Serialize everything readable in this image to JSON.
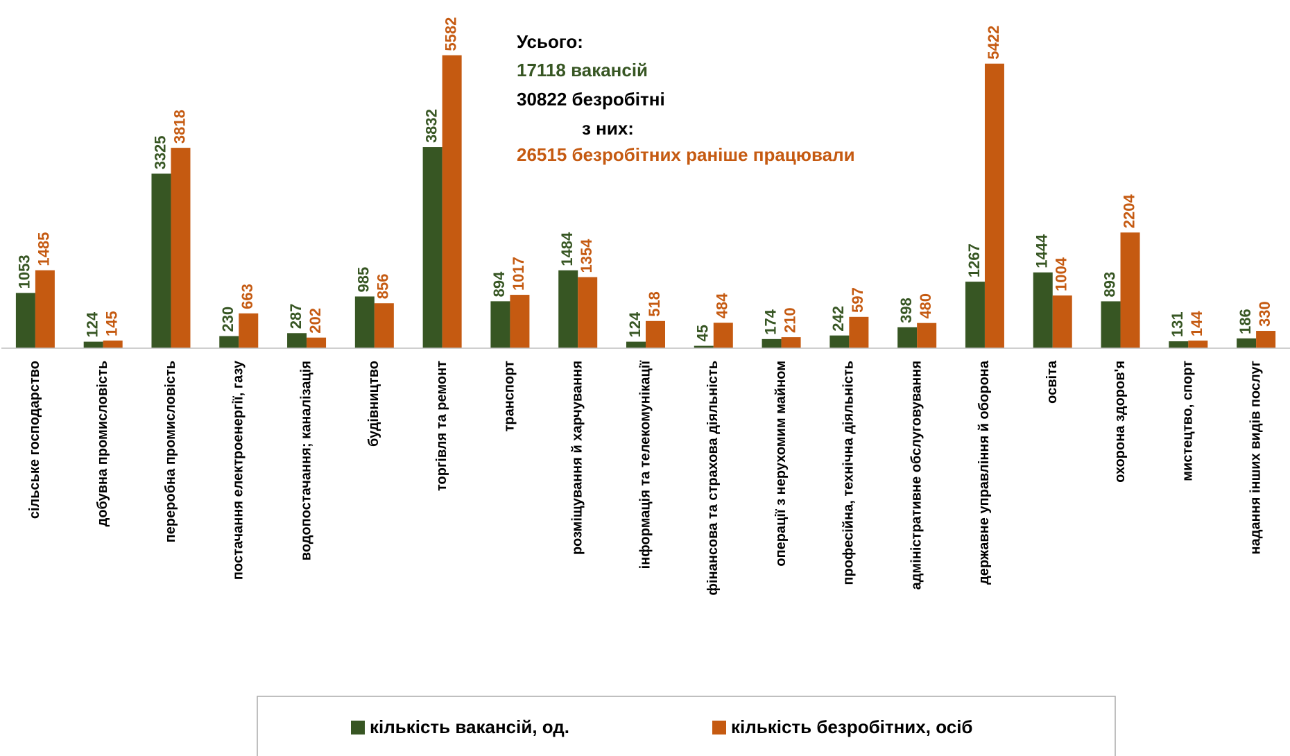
{
  "chart_data": {
    "type": "bar",
    "categories": [
      "сільське господарство",
      "добувна промисловість",
      "переробна промисловість",
      "постачання електроенергії, газу",
      "водопостачання; каналізація",
      "будівництво",
      "торгівля та ремонт",
      "транспорт",
      "розміщування й харчування",
      "інформація та телекомунікації",
      "фінансова та страхова діяльність",
      "операції з нерухомим майном",
      "професійна, технічна діяльність",
      "адміністративне обслуговування",
      "державне управління й оборона",
      "освіта",
      "охорона здоров'я",
      "мистецтво, спорт",
      "надання інших видів послуг"
    ],
    "series": [
      {
        "name": "кількість вакансій, од.",
        "color": "#375623",
        "values": [
          1053,
          124,
          3325,
          230,
          287,
          985,
          3832,
          894,
          1484,
          124,
          45,
          174,
          242,
          398,
          1267,
          1444,
          893,
          131,
          186
        ]
      },
      {
        "name": "кількість безробітних, осіб",
        "color": "#c55a11",
        "values": [
          1485,
          145,
          3818,
          663,
          202,
          856,
          5582,
          1017,
          1354,
          518,
          484,
          210,
          597,
          480,
          5422,
          1004,
          2204,
          144,
          330
        ]
      }
    ],
    "ylim": [
      0,
      6000
    ],
    "annotations": [
      {
        "text": "Усього:",
        "color": "#000000"
      },
      {
        "text": "17118  вакансій",
        "color": "#375623"
      },
      {
        "text": "30822 безробітні",
        "color": "#000000"
      },
      {
        "text": "з них:",
        "color": "#000000"
      },
      {
        "text": "26515 безробітних раніше працювали",
        "color": "#c55a11"
      }
    ]
  }
}
